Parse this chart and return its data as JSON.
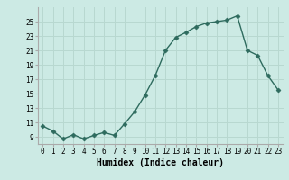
{
  "x": [
    0,
    1,
    2,
    3,
    4,
    5,
    6,
    7,
    8,
    9,
    10,
    11,
    12,
    13,
    14,
    15,
    16,
    17,
    18,
    19,
    20,
    21,
    22,
    23
  ],
  "y": [
    10.5,
    9.8,
    8.7,
    9.3,
    8.7,
    9.2,
    9.6,
    9.2,
    10.8,
    12.5,
    14.8,
    17.5,
    21.0,
    22.8,
    23.5,
    24.3,
    24.8,
    25.0,
    25.2,
    25.8,
    21.0,
    20.3,
    17.5,
    15.5
  ],
  "line_color": "#2e6b5e",
  "marker": "D",
  "marker_size": 2.5,
  "bg_color": "#cceae4",
  "grid_color": "#b8d8d0",
  "xlabel": "Humidex (Indice chaleur)",
  "ylim": [
    8.0,
    27.0
  ],
  "xlim": [
    -0.5,
    23.5
  ],
  "yticks": [
    9,
    11,
    13,
    15,
    17,
    19,
    21,
    23,
    25
  ],
  "xticks": [
    0,
    1,
    2,
    3,
    4,
    5,
    6,
    7,
    8,
    9,
    10,
    11,
    12,
    13,
    14,
    15,
    16,
    17,
    18,
    19,
    20,
    21,
    22,
    23
  ],
  "tick_fontsize": 5.5,
  "label_fontsize": 7.0,
  "linewidth": 1.0
}
